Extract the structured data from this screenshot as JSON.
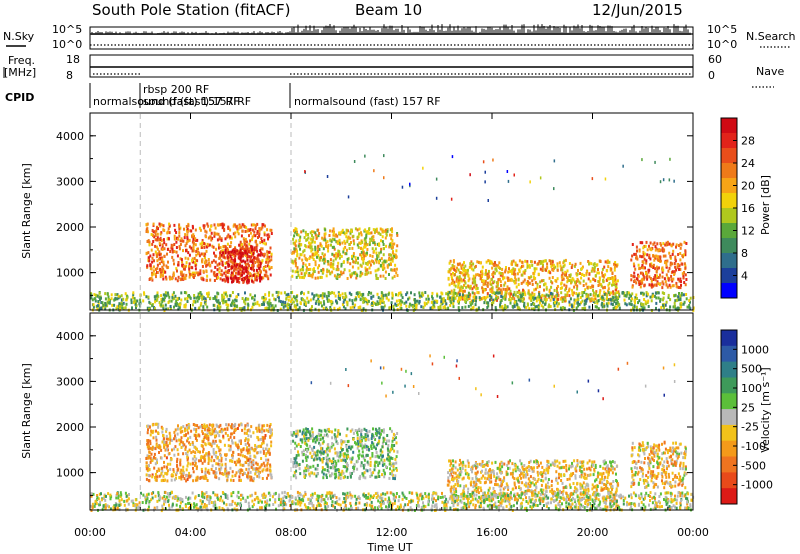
{
  "header": {
    "station": "South Pole Station (fitACF)",
    "beam": "Beam 10",
    "date": "12/Jun/2015"
  },
  "summary": {
    "nsky_label": "N.Sky",
    "nsky_ticks": [
      "10^5",
      "10^0"
    ],
    "nsearch_label": "N.Search",
    "nsearch_ticks": [
      "10^5",
      "10^0"
    ],
    "freq_label_1": "Freq.",
    "freq_label_2": "[MHz]",
    "freq_ticks": [
      "18",
      "8"
    ],
    "nave_label": "Nave",
    "nave_ticks": [
      "60",
      "0"
    ],
    "cpid_label": "CPID",
    "cpid_segments": [
      {
        "label": "normalsound (fast) 157 RF",
        "start_h": 0,
        "end_h": 2
      },
      {
        "label": "rbsp 200 RF",
        "start_h": 2,
        "end_h": 8
      },
      {
        "label": "normalsound (fast) 157 RF",
        "start_h": 8,
        "end_h": 24
      }
    ],
    "cpid_extra_label": "sound (fast) 157 RF"
  },
  "axes": {
    "ylabel": "Slant Range [km]",
    "xlabel": "Time UT",
    "x_ticks": [
      "00:00",
      "04:00",
      "08:00",
      "12:00",
      "16:00",
      "20:00",
      "00:00"
    ],
    "y_ticks": [
      "1000",
      "2000",
      "3000",
      "4000"
    ]
  },
  "power_colorbar": {
    "label": "Power [dB]",
    "ticks": [
      "4",
      "8",
      "12",
      "16",
      "20",
      "24",
      "28"
    ],
    "colors": [
      "#0000ff",
      "#1c3f9b",
      "#2f6e8c",
      "#3e8a5c",
      "#5aa83a",
      "#b0c81e",
      "#f2d20a",
      "#f7a416",
      "#ef7a19",
      "#e94e1b",
      "#e2231a",
      "#d00a14"
    ]
  },
  "velocity_colorbar": {
    "label": "Velocity [m s⁻¹]",
    "ticks": [
      "1000",
      "500",
      "100",
      "25",
      "-25",
      "-100",
      "-500",
      "-1000"
    ],
    "colors": [
      "#1a2e9c",
      "#2d5aa6",
      "#2f7f88",
      "#3e9a5a",
      "#5bbf3a",
      "#b8b8b8",
      "#f2c21a",
      "#f49a1a",
      "#ef7420",
      "#e94a1a",
      "#dc1a16"
    ]
  },
  "chart_data": [
    {
      "type": "heatmap",
      "title": "South Pole Station (fitACF) Beam 10 12/Jun/2015",
      "xlabel": "Time UT",
      "ylabel": "Slant Range [km]",
      "xlim_hours": [
        0,
        24
      ],
      "ylim_km": [
        180,
        4500
      ],
      "colorbar": "Power [dB]",
      "clim": [
        0,
        30
      ],
      "regions": [
        {
          "start_h": 2.2,
          "end_h": 7.2,
          "range_km": [
            850,
            2100
          ],
          "value": 22
        },
        {
          "start_h": 5.2,
          "end_h": 6.8,
          "range_km": [
            800,
            1600
          ],
          "value": 28
        },
        {
          "start_h": 8.0,
          "end_h": 12.2,
          "range_km": [
            900,
            2000
          ],
          "value": 16
        },
        {
          "start_h": 14.2,
          "end_h": 21.0,
          "range_km": [
            400,
            1300
          ],
          "value": 18
        },
        {
          "start_h": 21.5,
          "end_h": 23.7,
          "range_km": [
            700,
            1700
          ],
          "value": 22
        },
        {
          "start_h": 0.0,
          "end_h": 24.0,
          "range_km": [
            200,
            600
          ],
          "value": 12
        }
      ]
    },
    {
      "type": "heatmap",
      "title": "",
      "xlabel": "Time UT",
      "ylabel": "Slant Range [km]",
      "xlim_hours": [
        0,
        24
      ],
      "ylim_km": [
        180,
        4500
      ],
      "colorbar": "Velocity [m s⁻¹]",
      "clim": [
        -1000,
        1000
      ],
      "regions": [
        {
          "start_h": 2.2,
          "end_h": 7.2,
          "range_km": [
            850,
            2100
          ],
          "value": -300
        },
        {
          "start_h": 8.0,
          "end_h": 12.2,
          "range_km": [
            900,
            2000
          ],
          "value": 150
        },
        {
          "start_h": 14.2,
          "end_h": 21.0,
          "range_km": [
            400,
            1300
          ],
          "value": -150
        },
        {
          "start_h": 21.5,
          "end_h": 23.7,
          "range_km": [
            700,
            1700
          ],
          "value": -200
        },
        {
          "start_h": 0.0,
          "end_h": 24.0,
          "range_km": [
            200,
            600
          ],
          "value": 0
        }
      ]
    }
  ]
}
